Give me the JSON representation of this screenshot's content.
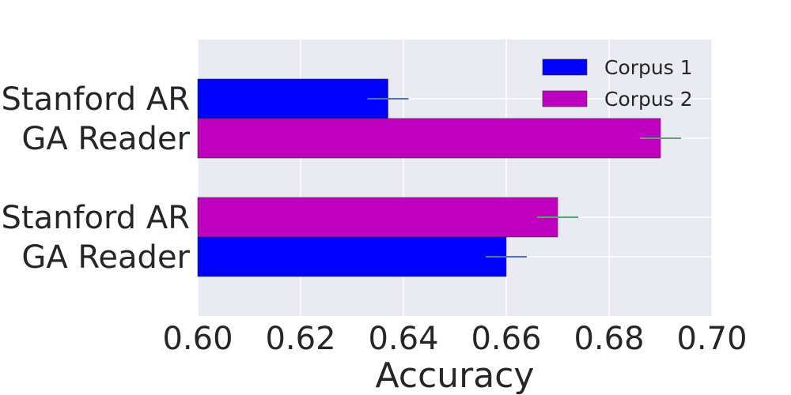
{
  "chart_data": {
    "type": "bar",
    "orientation": "horizontal",
    "xlabel": "Accuracy",
    "xlim": [
      0.6,
      0.7
    ],
    "xticks": [
      "0.60",
      "0.62",
      "0.64",
      "0.66",
      "0.68",
      "0.70"
    ],
    "grid": true,
    "legend_position": "top-right",
    "series": [
      {
        "name": "Corpus 1",
        "color": "#0000ff",
        "errorbar_color": "#4c72b0"
      },
      {
        "name": "Corpus 2",
        "color": "#bf00bf",
        "errorbar_color": "#55a868"
      }
    ],
    "groups": [
      {
        "bars": [
          {
            "label": "Stanford AR",
            "series": "Corpus 1",
            "value": 0.637,
            "error": 0.004
          },
          {
            "label": "GA Reader",
            "series": "Corpus 2",
            "value": 0.69,
            "error": 0.004
          }
        ]
      },
      {
        "bars": [
          {
            "label": "Stanford AR",
            "series": "Corpus 2",
            "value": 0.67,
            "error": 0.004
          },
          {
            "label": "GA Reader",
            "series": "Corpus 1",
            "value": 0.66,
            "error": 0.004
          }
        ]
      }
    ]
  }
}
